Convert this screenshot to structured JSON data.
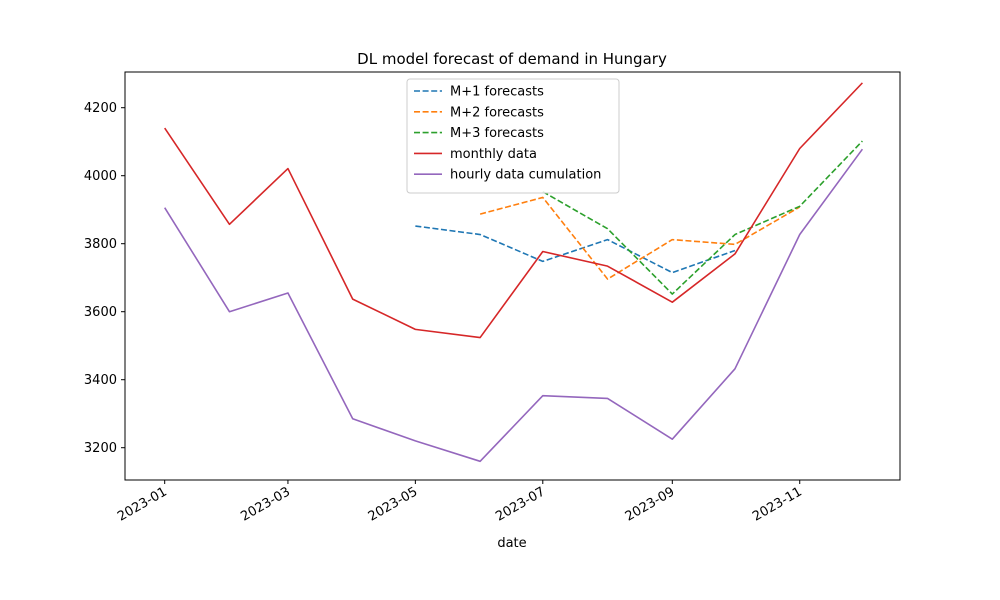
{
  "chart_data": {
    "type": "line",
    "title": "DL model forecast of demand in Hungary",
    "xlabel": "date",
    "ylabel": "",
    "ylim": [
      3105,
      4305
    ],
    "xlim": [
      "2022-12-13",
      "2023-12-19"
    ],
    "x_ticks": [
      "2023-01",
      "2023-03",
      "2023-05",
      "2023-07",
      "2023-09",
      "2023-11"
    ],
    "y_ticks": [
      3200,
      3400,
      3600,
      3800,
      4000,
      4200
    ],
    "legend": "upper center",
    "grid": false,
    "series": [
      {
        "name": "M+1 forecasts",
        "color": "#1f77b4",
        "dashed": true,
        "x": [
          "2023-05-01",
          "2023-06-01",
          "2023-07-01",
          "2023-08-01",
          "2023-09-01",
          "2023-10-01"
        ],
        "y": [
          3852,
          3827,
          3748,
          3812,
          3715,
          3780
        ]
      },
      {
        "name": "M+2 forecasts",
        "color": "#ff7f0e",
        "dashed": true,
        "x": [
          "2023-06-01",
          "2023-07-01",
          "2023-08-01",
          "2023-09-01",
          "2023-10-01",
          "2023-11-01"
        ],
        "y": [
          3887,
          3936,
          3696,
          3812,
          3798,
          3908
        ]
      },
      {
        "name": "M+3 forecasts",
        "color": "#2ca02c",
        "dashed": true,
        "x": [
          "2023-07-01",
          "2023-08-01",
          "2023-09-01",
          "2023-10-01",
          "2023-11-01",
          "2023-12-01"
        ],
        "y": [
          3953,
          3844,
          3652,
          3827,
          3910,
          4102
        ]
      },
      {
        "name": "monthly data",
        "color": "#d62728",
        "dashed": false,
        "x": [
          "2023-01-01",
          "2023-02-01",
          "2023-03-01",
          "2023-04-01",
          "2023-05-01",
          "2023-06-01",
          "2023-07-01",
          "2023-08-01",
          "2023-09-01",
          "2023-10-01",
          "2023-11-01",
          "2023-12-01"
        ],
        "y": [
          4140,
          3857,
          4021,
          3637,
          3548,
          3524,
          3777,
          3734,
          3628,
          3770,
          4080,
          4273
        ]
      },
      {
        "name": "hourly data cumulation",
        "color": "#9467bd",
        "dashed": false,
        "x": [
          "2023-01-01",
          "2023-02-01",
          "2023-03-01",
          "2023-04-01",
          "2023-05-01",
          "2023-06-01",
          "2023-07-01",
          "2023-08-01",
          "2023-09-01",
          "2023-10-01",
          "2023-11-01",
          "2023-12-01"
        ],
        "y": [
          3906,
          3600,
          3655,
          3285,
          3220,
          3160,
          3353,
          3345,
          3225,
          3432,
          3827,
          4078
        ]
      }
    ]
  }
}
